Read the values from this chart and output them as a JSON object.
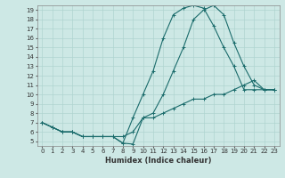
{
  "title": "",
  "xlabel": "Humidex (Indice chaleur)",
  "bg_color": "#cde8e5",
  "grid_color": "#afd4d0",
  "line_color": "#1a6b6b",
  "xlim": [
    -0.5,
    23.5
  ],
  "ylim": [
    4.5,
    19.5
  ],
  "xticks": [
    0,
    1,
    2,
    3,
    4,
    5,
    6,
    7,
    8,
    9,
    10,
    11,
    12,
    13,
    14,
    15,
    16,
    17,
    18,
    19,
    20,
    21,
    22,
    23
  ],
  "yticks": [
    5,
    6,
    7,
    8,
    9,
    10,
    11,
    12,
    13,
    14,
    15,
    16,
    17,
    18,
    19
  ],
  "line1_x": [
    0,
    1,
    2,
    3,
    4,
    5,
    6,
    7,
    8,
    9,
    10,
    11,
    12,
    13,
    14,
    15,
    16,
    17,
    18,
    19,
    20,
    21,
    22,
    23
  ],
  "line1_y": [
    7,
    6.5,
    6,
    6,
    5.5,
    5.5,
    5.5,
    5.5,
    4.8,
    4.7,
    7.5,
    8,
    10,
    12.5,
    15,
    18,
    19,
    19.5,
    18.5,
    15.5,
    13,
    11,
    10.5,
    10.5
  ],
  "line2_x": [
    0,
    1,
    2,
    3,
    4,
    5,
    6,
    7,
    8,
    9,
    10,
    11,
    12,
    13,
    14,
    15,
    16,
    17,
    18,
    19,
    20,
    21,
    22,
    23
  ],
  "line2_y": [
    7,
    6.5,
    6,
    6,
    5.5,
    5.5,
    5.5,
    5.5,
    4.8,
    7.5,
    10,
    12.5,
    16,
    18.5,
    19.2,
    19.5,
    19.2,
    17.3,
    15,
    13,
    10.5,
    10.5,
    10.5,
    10.5
  ],
  "line3_x": [
    0,
    1,
    2,
    3,
    4,
    5,
    6,
    7,
    8,
    9,
    10,
    11,
    12,
    13,
    14,
    15,
    16,
    17,
    18,
    19,
    20,
    21,
    22,
    23
  ],
  "line3_y": [
    7,
    6.5,
    6,
    6,
    5.5,
    5.5,
    5.5,
    5.5,
    5.5,
    6,
    7.5,
    7.5,
    8,
    8.5,
    9,
    9.5,
    9.5,
    10,
    10,
    10.5,
    11,
    11.5,
    10.5,
    10.5
  ]
}
